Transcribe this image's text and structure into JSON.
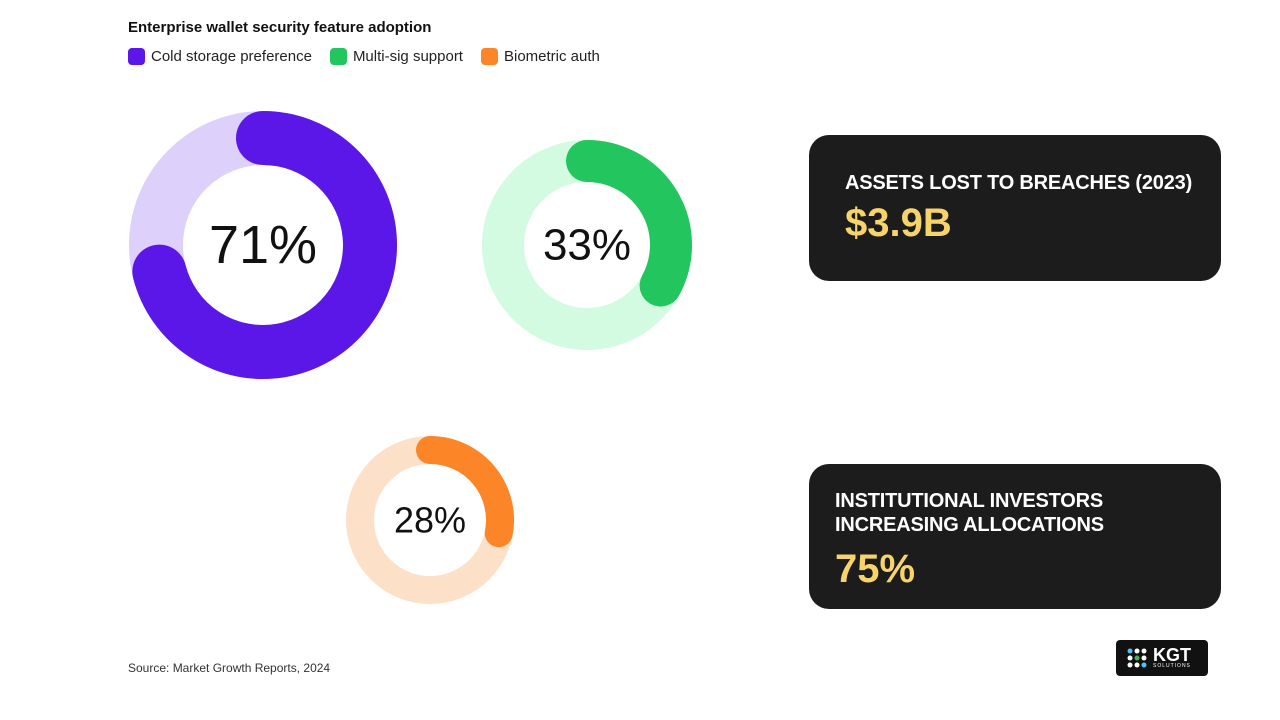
{
  "chart_data": {
    "type": "donut",
    "title": "Enterprise wallet security feature adoption",
    "categories": [
      "Cold storage preference",
      "Multi-sig support",
      "Biometric auth"
    ],
    "values": [
      71,
      33,
      28
    ],
    "value_labels": [
      "71%",
      "33%",
      "28%"
    ],
    "colors": [
      "#5b16e8",
      "#22c55e",
      "#fb8527"
    ],
    "track_colors": [
      "#ddd0fb",
      "#d2fbe2",
      "#fde0c8"
    ]
  },
  "cards": [
    {
      "label": "ASSETS LOST TO BREACHES (2023)",
      "value": "$3.9B"
    },
    {
      "label": "INSTITUTIONAL INVESTORS INCREASING ALLOCATIONS",
      "value": "75%"
    }
  ],
  "source": "Source: Market Growth Reports, 2024",
  "logo": {
    "name": "KGT",
    "tagline": "SOLUTIONS"
  }
}
